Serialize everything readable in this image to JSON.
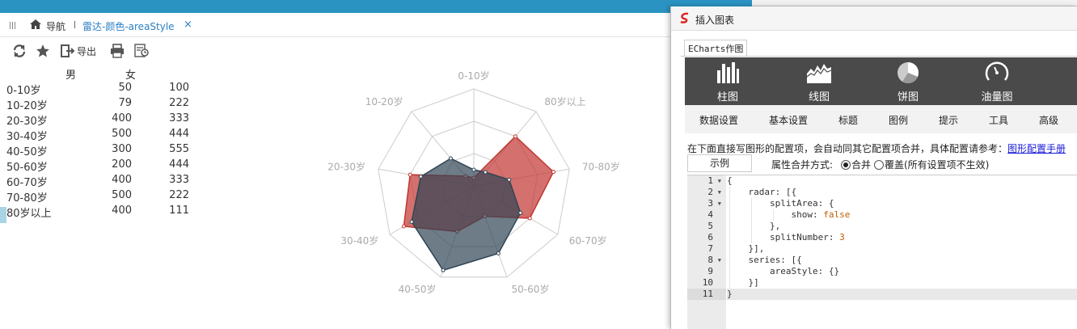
{
  "tabbar": {
    "nav_label": "导航",
    "tab_title": "雷达-颜色-areaStyle",
    "close_glyph": "×"
  },
  "toolbar": {
    "export_label": "导出"
  },
  "table": {
    "headers": [
      "男",
      "女"
    ],
    "rows": [
      {
        "label": "0-10岁",
        "male": "50",
        "female": "100"
      },
      {
        "label": "10-20岁",
        "male": "79",
        "female": "222"
      },
      {
        "label": "20-30岁",
        "male": "400",
        "female": "333"
      },
      {
        "label": "30-40岁",
        "male": "500",
        "female": "444"
      },
      {
        "label": "40-50岁",
        "male": "300",
        "female": "555"
      },
      {
        "label": "50-60岁",
        "male": "200",
        "female": "444"
      },
      {
        "label": "60-70岁",
        "male": "400",
        "female": "333"
      },
      {
        "label": "70-80岁",
        "male": "500",
        "female": "222"
      },
      {
        "label": "80岁以上",
        "male": "400",
        "female": "111"
      }
    ]
  },
  "chart_data": {
    "type": "radar",
    "indicators": [
      "0-10岁",
      "80岁以上",
      "70-80岁",
      "60-70岁",
      "50-60岁",
      "40-50岁",
      "30-40岁",
      "20-30岁",
      "10-20岁"
    ],
    "max": 600,
    "split_number": 3,
    "series": [
      {
        "name": "男",
        "color": "#c23531",
        "values": [
          50,
          400,
          500,
          400,
          200,
          300,
          500,
          400,
          79
        ]
      },
      {
        "name": "女",
        "color": "#2f4554",
        "values": [
          100,
          111,
          222,
          333,
          444,
          555,
          444,
          333,
          222
        ]
      }
    ]
  },
  "dialog": {
    "title": "插入图表",
    "tab": "ECharts作图",
    "chart_types": [
      {
        "label": "柱图",
        "icon": "bar-chart-icon"
      },
      {
        "label": "线图",
        "icon": "line-chart-icon"
      },
      {
        "label": "饼图",
        "icon": "pie-chart-icon"
      },
      {
        "label": "油量图",
        "icon": "gauge-icon"
      }
    ],
    "config_tabs": [
      "数据设置",
      "基本设置",
      "标题",
      "图例",
      "提示",
      "工具",
      "高级"
    ],
    "hint": "在下面直接写图形的配置项，会自动同其它配置项合并，具体配置请参考：",
    "hint_link": "图形配置手册",
    "example_button": "示例",
    "merge_label": "属性合并方式:",
    "merge_options": [
      "合并",
      "覆盖(所有设置项不生效)"
    ],
    "merge_selected": "合并"
  },
  "editor": {
    "line_numbers": [
      "1",
      "2",
      "3",
      "4",
      "5",
      "6",
      "7",
      "8",
      "9",
      "10",
      "11"
    ],
    "lines": [
      "{",
      "    radar: [{",
      "        splitArea: {",
      "            show: false",
      "        },",
      "        splitNumber: 3",
      "    }],",
      "    series: [{",
      "        areaStyle: {}",
      "    }]",
      "}"
    ]
  },
  "colors": {
    "topbar": "#2b93c1",
    "tab_active": "#2b7fc3",
    "male": "#c23531",
    "female": "#2f4554"
  }
}
